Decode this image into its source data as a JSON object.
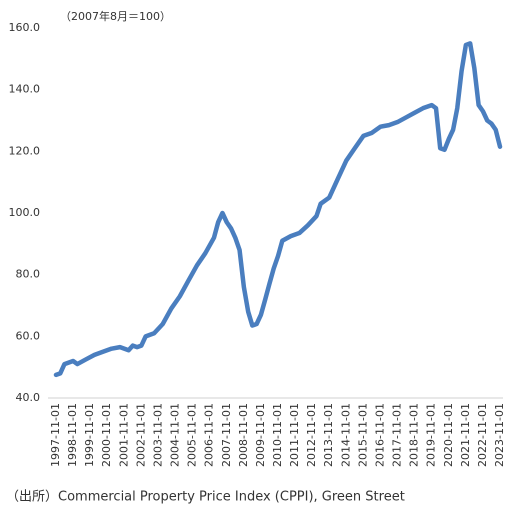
{
  "chart_data": {
    "type": "line",
    "annotation": "（2007年8月＝100）",
    "source": "（出所）Commercial Property Price Index (CPPI), Green Street",
    "series": [
      {
        "color": "#4a7ebf",
        "x": [
          "1997-11-01",
          "1998-02-01",
          "1998-05-01",
          "1998-11-01",
          "1999-02-01",
          "1999-08-01",
          "2000-02-01",
          "2000-08-01",
          "2001-02-01",
          "2001-08-01",
          "2002-02-01",
          "2002-05-01",
          "2002-08-01",
          "2002-11-01",
          "2003-02-01",
          "2003-08-01",
          "2004-02-01",
          "2004-08-01",
          "2005-02-01",
          "2005-08-01",
          "2006-02-01",
          "2006-08-01",
          "2007-02-01",
          "2007-05-01",
          "2007-08-01",
          "2007-11-01",
          "2008-02-01",
          "2008-05-01",
          "2008-08-01",
          "2008-11-01",
          "2009-02-01",
          "2009-05-01",
          "2009-08-01",
          "2009-11-01",
          "2010-02-01",
          "2010-05-01",
          "2010-08-01",
          "2010-11-01",
          "2011-02-01",
          "2011-08-01",
          "2012-02-01",
          "2012-08-01",
          "2013-02-01",
          "2013-05-01",
          "2013-11-01",
          "2014-05-01",
          "2014-11-01",
          "2015-05-01",
          "2015-11-01",
          "2016-05-01",
          "2016-11-01",
          "2017-05-01",
          "2017-11-01",
          "2018-05-01",
          "2018-11-01",
          "2019-05-01",
          "2019-11-01",
          "2020-02-01",
          "2020-05-01",
          "2020-08-01",
          "2020-11-01",
          "2021-02-01",
          "2021-05-01",
          "2021-08-01",
          "2021-11-01",
          "2022-02-01",
          "2022-05-01",
          "2022-08-01",
          "2022-11-01",
          "2023-02-01",
          "2023-05-01",
          "2023-08-01",
          "2023-11-01"
        ],
        "values": [
          47.5,
          48,
          51,
          52,
          51,
          52.5,
          54,
          55,
          56,
          56.5,
          55.5,
          57,
          56.5,
          57,
          60,
          61,
          64,
          69,
          73,
          78,
          83,
          87,
          92,
          97,
          100,
          97,
          95,
          92,
          88,
          76,
          68,
          63.5,
          64,
          67,
          72,
          77,
          82,
          86,
          91,
          92.5,
          93.5,
          96,
          99,
          103,
          105,
          111,
          117,
          121,
          125,
          126,
          128,
          128.5,
          129.5,
          131,
          132.5,
          134,
          135,
          134,
          121,
          120.5,
          124,
          127,
          134,
          146,
          154.5,
          155,
          147,
          135,
          133,
          130,
          129,
          127,
          121.5
        ]
      }
    ],
    "xlim": [
      "1997-11-01",
      "2023-11-01"
    ],
    "xticks": [
      "1997-11-01",
      "1998-11-01",
      "1999-11-01",
      "2000-11-01",
      "2001-11-01",
      "2002-11-01",
      "2003-11-01",
      "2004-11-01",
      "2005-11-01",
      "2006-11-01",
      "2007-11-01",
      "2008-11-01",
      "2009-11-01",
      "2010-11-01",
      "2011-11-01",
      "2012-11-01",
      "2013-11-01",
      "2014-11-01",
      "2015-11-01",
      "2016-11-01",
      "2017-11-01",
      "2018-11-01",
      "2019-11-01",
      "2020-11-01",
      "2021-11-01",
      "2022-11-01",
      "2023-11-01"
    ],
    "ylim": [
      40,
      160
    ],
    "yticks": [
      {
        "value": 40,
        "label": "40.0"
      },
      {
        "value": 60,
        "label": "60.0"
      },
      {
        "value": 80,
        "label": "80.0"
      },
      {
        "value": 100,
        "label": "100.0"
      },
      {
        "value": 120,
        "label": "120.0"
      },
      {
        "value": 140,
        "label": "140.0"
      },
      {
        "value": 160,
        "label": "160.0"
      }
    ],
    "grid": false
  }
}
